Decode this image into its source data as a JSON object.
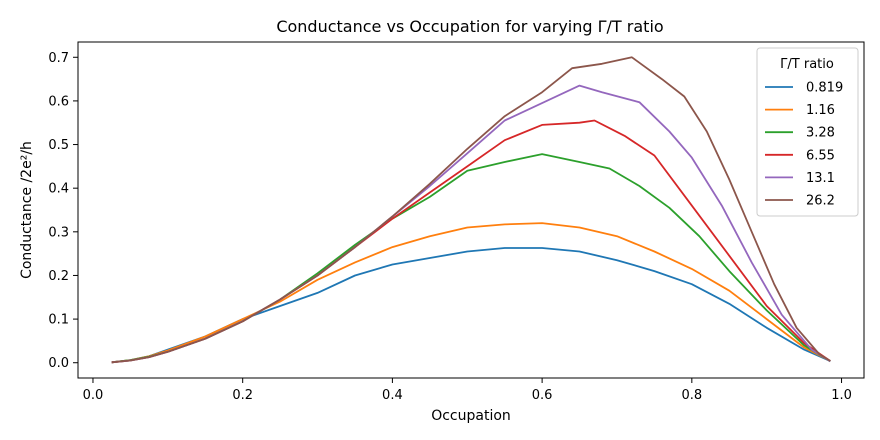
{
  "chart_data": {
    "type": "line",
    "title": "Conductance vs Occupation for varying Γ/T ratio",
    "xlabel": "Occupation",
    "ylabel": "Conductance /2e²/h",
    "xlim": [
      -0.02,
      1.03
    ],
    "ylim": [
      -0.035,
      0.735
    ],
    "xticks": [
      0.0,
      0.2,
      0.4,
      0.6,
      0.8,
      1.0
    ],
    "xtick_labels": [
      "0.0",
      "0.2",
      "0.4",
      "0.6",
      "0.8",
      "1.0"
    ],
    "yticks": [
      0.0,
      0.1,
      0.2,
      0.3,
      0.4,
      0.5,
      0.6,
      0.7
    ],
    "ytick_labels": [
      "0.0",
      "0.1",
      "0.2",
      "0.3",
      "0.4",
      "0.5",
      "0.6",
      "0.7"
    ],
    "grid": false,
    "legend": {
      "title": "Γ/T ratio",
      "placement": "top-right"
    },
    "series": [
      {
        "name": "0.819",
        "color": "#1f77b4",
        "x": [
          0.025,
          0.05,
          0.075,
          0.1,
          0.15,
          0.2,
          0.25,
          0.3,
          0.35,
          0.4,
          0.45,
          0.5,
          0.55,
          0.6,
          0.65,
          0.7,
          0.75,
          0.8,
          0.85,
          0.9,
          0.95,
          0.985
        ],
        "y": [
          0.001,
          0.006,
          0.015,
          0.03,
          0.06,
          0.1,
          0.13,
          0.16,
          0.2,
          0.225,
          0.24,
          0.255,
          0.263,
          0.263,
          0.255,
          0.235,
          0.21,
          0.18,
          0.135,
          0.08,
          0.03,
          0.004
        ]
      },
      {
        "name": "1.16",
        "color": "#ff7f0e",
        "x": [
          0.025,
          0.05,
          0.075,
          0.1,
          0.15,
          0.2,
          0.25,
          0.3,
          0.35,
          0.4,
          0.45,
          0.5,
          0.55,
          0.6,
          0.65,
          0.7,
          0.75,
          0.8,
          0.85,
          0.9,
          0.95,
          0.985
        ],
        "y": [
          0.001,
          0.006,
          0.015,
          0.028,
          0.06,
          0.1,
          0.14,
          0.19,
          0.23,
          0.265,
          0.29,
          0.31,
          0.317,
          0.32,
          0.31,
          0.29,
          0.255,
          0.215,
          0.165,
          0.1,
          0.035,
          0.004
        ]
      },
      {
        "name": "3.28",
        "color": "#2ca02c",
        "x": [
          0.025,
          0.05,
          0.075,
          0.1,
          0.15,
          0.2,
          0.25,
          0.3,
          0.35,
          0.4,
          0.45,
          0.5,
          0.55,
          0.6,
          0.65,
          0.69,
          0.73,
          0.77,
          0.81,
          0.85,
          0.9,
          0.95,
          0.985
        ],
        "y": [
          0.001,
          0.006,
          0.014,
          0.025,
          0.055,
          0.095,
          0.145,
          0.205,
          0.27,
          0.33,
          0.38,
          0.44,
          0.46,
          0.478,
          0.46,
          0.445,
          0.405,
          0.355,
          0.29,
          0.21,
          0.12,
          0.04,
          0.003
        ]
      },
      {
        "name": "6.55",
        "color": "#d62728",
        "x": [
          0.025,
          0.05,
          0.075,
          0.1,
          0.15,
          0.2,
          0.25,
          0.3,
          0.35,
          0.4,
          0.45,
          0.5,
          0.55,
          0.6,
          0.65,
          0.67,
          0.71,
          0.75,
          0.8,
          0.85,
          0.9,
          0.95,
          0.985
        ],
        "y": [
          0.001,
          0.005,
          0.013,
          0.025,
          0.055,
          0.095,
          0.145,
          0.2,
          0.265,
          0.33,
          0.39,
          0.45,
          0.51,
          0.545,
          0.55,
          0.555,
          0.52,
          0.475,
          0.36,
          0.245,
          0.13,
          0.045,
          0.004
        ]
      },
      {
        "name": "13.1",
        "color": "#9467bd",
        "x": [
          0.025,
          0.05,
          0.075,
          0.1,
          0.15,
          0.2,
          0.25,
          0.3,
          0.35,
          0.4,
          0.45,
          0.5,
          0.55,
          0.6,
          0.65,
          0.68,
          0.73,
          0.77,
          0.8,
          0.84,
          0.88,
          0.92,
          0.96,
          0.985
        ],
        "y": [
          0.001,
          0.005,
          0.013,
          0.025,
          0.055,
          0.095,
          0.145,
          0.2,
          0.265,
          0.335,
          0.405,
          0.48,
          0.555,
          0.595,
          0.635,
          0.62,
          0.597,
          0.53,
          0.47,
          0.36,
          0.23,
          0.11,
          0.03,
          0.003
        ]
      },
      {
        "name": "26.2",
        "color": "#8c564b",
        "x": [
          0.025,
          0.05,
          0.075,
          0.1,
          0.15,
          0.2,
          0.25,
          0.3,
          0.35,
          0.4,
          0.45,
          0.5,
          0.55,
          0.6,
          0.64,
          0.68,
          0.72,
          0.76,
          0.79,
          0.82,
          0.85,
          0.88,
          0.91,
          0.94,
          0.97,
          0.985
        ],
        "y": [
          0.001,
          0.005,
          0.013,
          0.025,
          0.055,
          0.095,
          0.145,
          0.2,
          0.265,
          0.335,
          0.41,
          0.49,
          0.565,
          0.62,
          0.675,
          0.685,
          0.7,
          0.65,
          0.61,
          0.53,
          0.42,
          0.3,
          0.18,
          0.08,
          0.02,
          0.004
        ]
      }
    ]
  }
}
